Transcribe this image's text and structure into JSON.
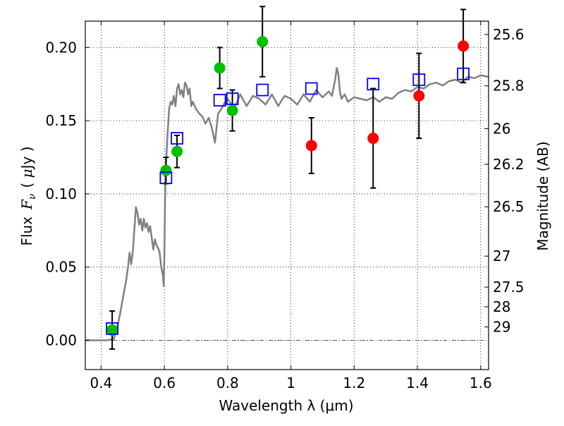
{
  "chart_data": {
    "type": "scatter",
    "xlabel": "Wavelength  λ (μm)",
    "ylabel_left": {
      "word": "Flux",
      "symbol": "F",
      "sub": "ν",
      "unit_open": "( ",
      "unit_mu": "μ",
      "unit_rest": "Jy )"
    },
    "ylabel_right": "Magnitude (AB)",
    "xlim": [
      0.35,
      1.625
    ],
    "ylim": [
      -0.02,
      0.218
    ],
    "grid": true,
    "x_ticks": [
      0.4,
      0.6,
      0.8,
      1.0,
      1.2,
      1.4,
      1.6
    ],
    "x_tick_labels": [
      "0.4",
      "0.6",
      "0.8",
      "1",
      "1.2",
      "1.4",
      "1.6"
    ],
    "y_ticks": [
      0.0,
      0.05,
      0.1,
      0.15,
      0.2
    ],
    "y_tick_labels": [
      "0.00",
      "0.05",
      "0.10",
      "0.15",
      "0.20"
    ],
    "right_ticks": [
      {
        "label": "25.6",
        "flux": 0.2089
      },
      {
        "label": "25.8",
        "flux": 0.1738
      },
      {
        "label": "26",
        "flux": 0.1445
      },
      {
        "label": "26.2",
        "flux": 0.1202
      },
      {
        "label": "26.5",
        "flux": 0.0912
      },
      {
        "label": "27",
        "flux": 0.0575
      },
      {
        "label": "27.5",
        "flux": 0.0363
      },
      {
        "label": "28",
        "flux": 0.0229
      },
      {
        "label": "29",
        "flux": 0.0091
      }
    ],
    "zero_line": 0.0,
    "series": [
      {
        "kind": "line",
        "color": "#808080",
        "x": [
          0.35,
          0.42,
          0.44,
          0.45,
          0.46,
          0.47,
          0.48,
          0.485,
          0.49,
          0.495,
          0.5,
          0.505,
          0.51,
          0.515,
          0.52,
          0.525,
          0.53,
          0.535,
          0.54,
          0.545,
          0.55,
          0.555,
          0.56,
          0.565,
          0.57,
          0.575,
          0.58,
          0.585,
          0.59,
          0.595,
          0.598,
          0.6,
          0.602,
          0.605,
          0.61,
          0.615,
          0.62,
          0.625,
          0.63,
          0.635,
          0.64,
          0.645,
          0.65,
          0.655,
          0.66,
          0.665,
          0.67,
          0.675,
          0.68,
          0.685,
          0.69,
          0.7,
          0.71,
          0.72,
          0.73,
          0.74,
          0.75,
          0.76,
          0.77,
          0.78,
          0.79,
          0.8,
          0.82,
          0.84,
          0.86,
          0.88,
          0.9,
          0.92,
          0.94,
          0.96,
          0.98,
          1.0,
          1.02,
          1.04,
          1.06,
          1.08,
          1.1,
          1.12,
          1.13,
          1.14,
          1.145,
          1.15,
          1.155,
          1.16,
          1.17,
          1.18,
          1.2,
          1.22,
          1.24,
          1.26,
          1.28,
          1.3,
          1.32,
          1.34,
          1.36,
          1.38,
          1.4,
          1.42,
          1.44,
          1.46,
          1.48,
          1.5,
          1.52,
          1.54,
          1.56,
          1.58,
          1.6,
          1.625
        ],
        "y": [
          0.0,
          0.0,
          0.001,
          0.008,
          0.018,
          0.03,
          0.042,
          0.05,
          0.06,
          0.052,
          0.06,
          0.075,
          0.091,
          0.087,
          0.079,
          0.083,
          0.075,
          0.083,
          0.077,
          0.08,
          0.074,
          0.078,
          0.07,
          0.062,
          0.069,
          0.065,
          0.063,
          0.06,
          0.05,
          0.045,
          0.037,
          0.06,
          0.095,
          0.12,
          0.14,
          0.158,
          0.163,
          0.161,
          0.167,
          0.16,
          0.172,
          0.175,
          0.168,
          0.171,
          0.166,
          0.176,
          0.174,
          0.168,
          0.172,
          0.16,
          0.163,
          0.158,
          0.155,
          0.153,
          0.148,
          0.152,
          0.145,
          0.135,
          0.155,
          0.158,
          0.162,
          0.165,
          0.158,
          0.168,
          0.16,
          0.167,
          0.165,
          0.161,
          0.168,
          0.16,
          0.167,
          0.165,
          0.161,
          0.168,
          0.163,
          0.171,
          0.166,
          0.17,
          0.167,
          0.178,
          0.186,
          0.182,
          0.17,
          0.165,
          0.168,
          0.163,
          0.166,
          0.165,
          0.164,
          0.166,
          0.163,
          0.166,
          0.165,
          0.169,
          0.171,
          0.17,
          0.173,
          0.172,
          0.175,
          0.176,
          0.174,
          0.177,
          0.178,
          0.176,
          0.18,
          0.179,
          0.181,
          0.18
        ]
      },
      {
        "kind": "points",
        "color": "#00c000",
        "marker": "circle",
        "x": [
          0.435,
          0.605,
          0.64,
          0.775,
          0.815,
          0.91
        ],
        "y": [
          0.007,
          0.116,
          0.129,
          0.186,
          0.157,
          0.204
        ],
        "err": [
          0.013,
          0.009,
          0.011,
          0.014,
          0.014,
          0.024
        ]
      },
      {
        "kind": "points",
        "color": "#ff0000",
        "marker": "circle",
        "x": [
          1.065,
          1.26,
          1.405,
          1.545
        ],
        "y": [
          0.133,
          0.138,
          0.167,
          0.201
        ],
        "err": [
          0.019,
          0.034,
          0.029,
          0.025
        ]
      },
      {
        "kind": "points",
        "color": "#0000ff",
        "marker": "open-square",
        "x": [
          0.435,
          0.605,
          0.64,
          0.775,
          0.815,
          0.91,
          1.065,
          1.26,
          1.405,
          1.545
        ],
        "y": [
          0.008,
          0.111,
          0.138,
          0.164,
          0.165,
          0.171,
          0.172,
          0.175,
          0.178,
          0.182
        ]
      }
    ]
  }
}
